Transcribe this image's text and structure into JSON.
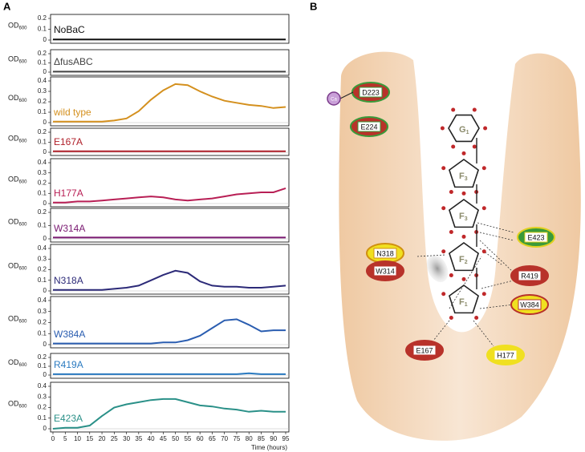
{
  "panel_a_label": "A",
  "chart_data": [
    {
      "type": "line",
      "ylabel": "OD",
      "ylabel_sub": "600",
      "ylim": [
        0,
        0.2
      ],
      "yticks": [
        0,
        0.1,
        0.2
      ],
      "xlim": [
        0,
        95
      ],
      "x": [
        0,
        5,
        10,
        15,
        20,
        25,
        30,
        35,
        40,
        45,
        50,
        55,
        60,
        65,
        70,
        75,
        80,
        85,
        90,
        95
      ],
      "series": [
        {
          "name": "NoBaC",
          "color": "#111111",
          "values": [
            0.005,
            0.005,
            0.005,
            0.005,
            0.005,
            0.005,
            0.005,
            0.005,
            0.005,
            0.005,
            0.005,
            0.005,
            0.005,
            0.005,
            0.005,
            0.005,
            0.005,
            0.005,
            0.005,
            0.005
          ]
        }
      ]
    },
    {
      "type": "line",
      "ylabel": "OD",
      "ylabel_sub": "600",
      "ylim": [
        0,
        0.2
      ],
      "yticks": [
        0,
        0.1,
        0.2
      ],
      "xlim": [
        0,
        95
      ],
      "x": [
        0,
        5,
        10,
        15,
        20,
        25,
        30,
        35,
        40,
        45,
        50,
        55,
        60,
        65,
        70,
        75,
        80,
        85,
        90,
        95
      ],
      "series": [
        {
          "name": "ΔfusABC",
          "color": "#444444",
          "values": [
            0.005,
            0.005,
            0.005,
            0.005,
            0.005,
            0.005,
            0.005,
            0.005,
            0.005,
            0.005,
            0.005,
            0.005,
            0.005,
            0.005,
            0.005,
            0.005,
            0.005,
            0.005,
            0.005,
            0.005
          ]
        }
      ]
    },
    {
      "type": "line",
      "ylabel": "OD",
      "ylabel_sub": "600",
      "ylim": [
        0,
        0.4
      ],
      "yticks": [
        0,
        0.1,
        0.2,
        0.3,
        0.4
      ],
      "xlim": [
        0,
        95
      ],
      "x": [
        0,
        5,
        10,
        15,
        20,
        25,
        30,
        35,
        40,
        45,
        50,
        55,
        60,
        65,
        70,
        75,
        80,
        85,
        90,
        95
      ],
      "series": [
        {
          "name": "wild type",
          "color": "#d4901e",
          "values": [
            0.01,
            0.01,
            0.01,
            0.01,
            0.01,
            0.02,
            0.04,
            0.11,
            0.22,
            0.31,
            0.37,
            0.36,
            0.3,
            0.25,
            0.21,
            0.19,
            0.17,
            0.16,
            0.14,
            0.15
          ]
        }
      ]
    },
    {
      "type": "line",
      "ylabel": "OD",
      "ylabel_sub": "600",
      "ylim": [
        0,
        0.2
      ],
      "yticks": [
        0,
        0.1,
        0.2
      ],
      "xlim": [
        0,
        95
      ],
      "x": [
        0,
        5,
        10,
        15,
        20,
        25,
        30,
        35,
        40,
        45,
        50,
        55,
        60,
        65,
        70,
        75,
        80,
        85,
        90,
        95
      ],
      "series": [
        {
          "name": "E167A",
          "color": "#b0202a",
          "values": [
            0.01,
            0.01,
            0.01,
            0.01,
            0.01,
            0.01,
            0.01,
            0.01,
            0.01,
            0.01,
            0.01,
            0.01,
            0.01,
            0.01,
            0.01,
            0.01,
            0.01,
            0.01,
            0.01,
            0.01
          ]
        }
      ]
    },
    {
      "type": "line",
      "ylabel": "OD",
      "ylabel_sub": "600",
      "ylim": [
        0,
        0.4
      ],
      "yticks": [
        0,
        0.1,
        0.2,
        0.3,
        0.4
      ],
      "xlim": [
        0,
        95
      ],
      "x": [
        0,
        5,
        10,
        15,
        20,
        25,
        30,
        35,
        40,
        45,
        50,
        55,
        60,
        65,
        70,
        75,
        80,
        85,
        90,
        95
      ],
      "series": [
        {
          "name": "H177A",
          "color": "#b81f55",
          "values": [
            0.01,
            0.01,
            0.02,
            0.02,
            0.03,
            0.04,
            0.05,
            0.06,
            0.07,
            0.06,
            0.04,
            0.03,
            0.04,
            0.05,
            0.07,
            0.09,
            0.1,
            0.11,
            0.11,
            0.15
          ]
        }
      ]
    },
    {
      "type": "line",
      "ylabel": "OD",
      "ylabel_sub": "600",
      "ylim": [
        0,
        0.2
      ],
      "yticks": [
        0,
        0.1,
        0.2
      ],
      "xlim": [
        0,
        95
      ],
      "x": [
        0,
        5,
        10,
        15,
        20,
        25,
        30,
        35,
        40,
        45,
        50,
        55,
        60,
        65,
        70,
        75,
        80,
        85,
        90,
        95
      ],
      "series": [
        {
          "name": "W314A",
          "color": "#7a1a72",
          "values": [
            0.01,
            0.01,
            0.01,
            0.01,
            0.01,
            0.01,
            0.01,
            0.01,
            0.01,
            0.01,
            0.01,
            0.01,
            0.01,
            0.01,
            0.01,
            0.01,
            0.01,
            0.01,
            0.01,
            0.01
          ]
        }
      ]
    },
    {
      "type": "line",
      "ylabel": "OD",
      "ylabel_sub": "600",
      "ylim": [
        0,
        0.4
      ],
      "yticks": [
        0,
        0.1,
        0.2,
        0.3,
        0.4
      ],
      "xlim": [
        0,
        95
      ],
      "x": [
        0,
        5,
        10,
        15,
        20,
        25,
        30,
        35,
        40,
        45,
        50,
        55,
        60,
        65,
        70,
        75,
        80,
        85,
        90,
        95
      ],
      "series": [
        {
          "name": "N318A",
          "color": "#2c2a78",
          "values": [
            0.01,
            0.01,
            0.01,
            0.01,
            0.01,
            0.02,
            0.03,
            0.05,
            0.1,
            0.15,
            0.19,
            0.17,
            0.09,
            0.05,
            0.04,
            0.04,
            0.03,
            0.03,
            0.04,
            0.05
          ]
        }
      ]
    },
    {
      "type": "line",
      "ylabel": "OD",
      "ylabel_sub": "600",
      "ylim": [
        0,
        0.4
      ],
      "yticks": [
        0,
        0.1,
        0.2,
        0.3,
        0.4
      ],
      "xlim": [
        0,
        95
      ],
      "x": [
        0,
        5,
        10,
        15,
        20,
        25,
        30,
        35,
        40,
        45,
        50,
        55,
        60,
        65,
        70,
        75,
        80,
        85,
        90,
        95
      ],
      "series": [
        {
          "name": "W384A",
          "color": "#2a5db0",
          "values": [
            0.01,
            0.01,
            0.01,
            0.01,
            0.01,
            0.01,
            0.01,
            0.01,
            0.01,
            0.02,
            0.02,
            0.04,
            0.08,
            0.15,
            0.22,
            0.23,
            0.18,
            0.12,
            0.13,
            0.13
          ]
        }
      ]
    },
    {
      "type": "line",
      "ylabel": "OD",
      "ylabel_sub": "600",
      "ylim": [
        0,
        0.2
      ],
      "yticks": [
        0,
        0.1,
        0.2
      ],
      "xlim": [
        0,
        95
      ],
      "x": [
        0,
        5,
        10,
        15,
        20,
        25,
        30,
        35,
        40,
        45,
        50,
        55,
        60,
        65,
        70,
        75,
        80,
        85,
        90,
        95
      ],
      "series": [
        {
          "name": "R419A",
          "color": "#2a7ac0",
          "values": [
            0.01,
            0.01,
            0.01,
            0.01,
            0.01,
            0.01,
            0.01,
            0.01,
            0.01,
            0.01,
            0.01,
            0.01,
            0.01,
            0.01,
            0.01,
            0.01,
            0.02,
            0.01,
            0.01,
            0.01
          ]
        }
      ]
    },
    {
      "type": "line",
      "ylabel": "OD",
      "ylabel_sub": "600",
      "ylim": [
        0,
        0.4
      ],
      "yticks": [
        0,
        0.1,
        0.2,
        0.3,
        0.4
      ],
      "xlim": [
        0,
        95
      ],
      "xticks": [
        0,
        5,
        10,
        15,
        20,
        25,
        30,
        35,
        40,
        45,
        50,
        55,
        60,
        65,
        70,
        75,
        80,
        85,
        90,
        95
      ],
      "xlabel": "Time (hours)",
      "x": [
        0,
        5,
        10,
        15,
        20,
        25,
        30,
        35,
        40,
        45,
        50,
        55,
        60,
        65,
        70,
        75,
        80,
        85,
        90,
        95
      ],
      "series": [
        {
          "name": "E423A",
          "color": "#2a9088",
          "values": [
            0.0,
            0.01,
            0.01,
            0.03,
            0.12,
            0.2,
            0.23,
            0.25,
            0.27,
            0.28,
            0.28,
            0.25,
            0.22,
            0.21,
            0.19,
            0.18,
            0.16,
            0.17,
            0.16,
            0.16
          ]
        }
      ]
    }
  ],
  "diagram": {
    "panel_label": "B",
    "calcium": "Ca",
    "rings": [
      {
        "letter": "G",
        "sub": "1"
      },
      {
        "letter": "F",
        "sub": "3"
      },
      {
        "letter": "F",
        "sub": "3"
      },
      {
        "letter": "F",
        "sub": "2"
      },
      {
        "letter": "F",
        "sub": "1"
      }
    ],
    "residues": [
      {
        "label": "D223",
        "color": "#b8322a",
        "border": "#3a9a3a"
      },
      {
        "label": "E224",
        "color": "#b8322a",
        "border": "#3a9a3a"
      },
      {
        "label": "E423",
        "color": "#3a9a3a",
        "border": "#e0d020"
      },
      {
        "label": "N318",
        "color": "#f0e020",
        "border": "#d09010"
      },
      {
        "label": "W314",
        "color": "#b8322a",
        "border": "#b8322a"
      },
      {
        "label": "R419",
        "color": "#b8322a",
        "border": "#b8322a"
      },
      {
        "label": "W384",
        "color": "#f0e020",
        "border": "#b8322a"
      },
      {
        "label": "E167",
        "color": "#b8322a",
        "border": "#b8322a"
      },
      {
        "label": "H177",
        "color": "#f0e020",
        "border": "#f0e020"
      }
    ]
  }
}
